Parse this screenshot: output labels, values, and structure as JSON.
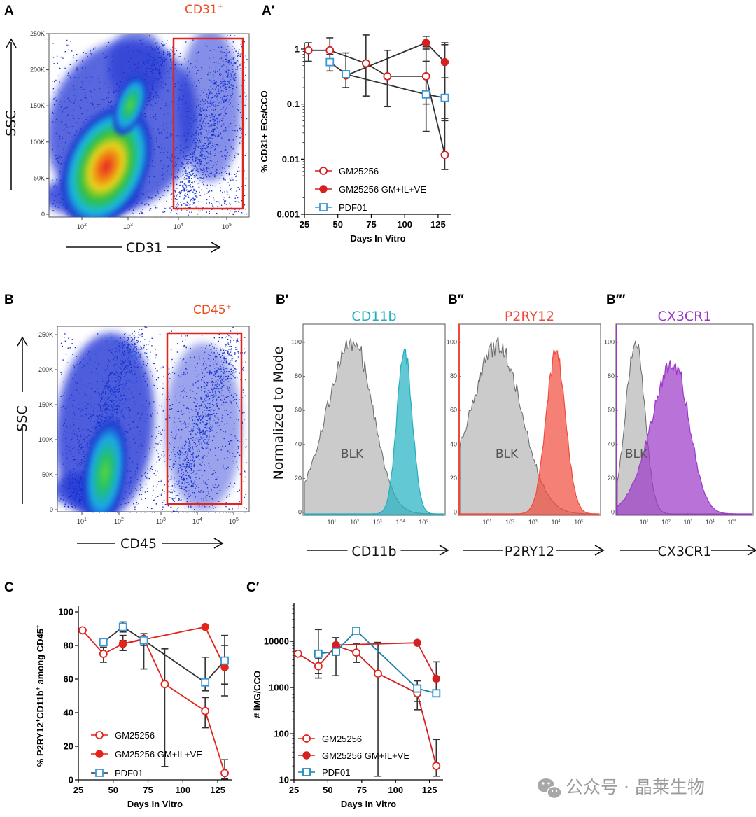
{
  "panels": {
    "A": {
      "label": "A",
      "gate_label": "CD31",
      "gate_sup": "+",
      "xlabel": "CD31",
      "ylabel": "SSC",
      "yticks": [
        "0",
        "50K",
        "100K",
        "150K",
        "200K",
        "250K"
      ],
      "xticks": [
        {
          "b": "10",
          "e": "2"
        },
        {
          "b": "10",
          "e": "3"
        },
        {
          "b": "10",
          "e": "4"
        },
        {
          "b": "10",
          "e": "5"
        }
      ]
    },
    "B": {
      "label": "B",
      "gate_label": "CD45",
      "gate_sup": "+",
      "xlabel": "CD45",
      "ylabel": "SSC",
      "yticks": [
        "0",
        "50K",
        "100K",
        "150K",
        "200K",
        "250K"
      ],
      "xticks": [
        {
          "b": "10",
          "e": "1"
        },
        {
          "b": "10",
          "e": "2"
        },
        {
          "b": "10",
          "e": "3"
        },
        {
          "b": "10",
          "e": "4"
        },
        {
          "b": "10",
          "e": "5"
        }
      ]
    },
    "B1": {
      "label": "B′",
      "title": "CD11b",
      "xlabel": "CD11b",
      "ylabel": "Normalized to Mode",
      "blank_label": "BLK",
      "yticks": [
        "0",
        "20",
        "40",
        "60",
        "80",
        "100"
      ]
    },
    "B2": {
      "label": "B′′",
      "title": "P2RY12",
      "xlabel": "P2RY12",
      "blank_label": "BLK",
      "yticks": [
        "0",
        "20",
        "40",
        "60",
        "80",
        "100"
      ]
    },
    "B3": {
      "label": "B′′′",
      "title": "CX3CR1",
      "xlabel": "CX3CR1",
      "blank_label": "BLK",
      "yticks": [
        "0",
        "20",
        "40",
        "60",
        "80",
        "100"
      ]
    }
  },
  "colors": {
    "red": "#e3241b",
    "blue": "#3c97d8",
    "teal": "#1fb0c0",
    "p2ry12": "#f04a3c",
    "cx3cr1": "#9b38c8",
    "gray": "#333333"
  },
  "chart_data": [
    {
      "id": "A1",
      "label": "A′",
      "type": "line",
      "yscale": "log",
      "xlabel": "Days In Vitro",
      "ylabel": "% CD31+ ECs/CCO",
      "xlim": [
        25,
        135
      ],
      "ylim": [
        0.001,
        1
      ],
      "xticks": [
        25,
        50,
        75,
        100,
        125
      ],
      "ytick_labels": [
        "0.001",
        "0.01",
        "0.1",
        "1"
      ],
      "series": [
        {
          "name": "GM25256",
          "marker": "open-circle",
          "color": "#d42020",
          "points": [
            {
              "x": 28,
              "y": 0.95,
              "lo": 0.6,
              "hi": 1.3
            },
            {
              "x": 44,
              "y": 0.95,
              "lo": 0.55,
              "hi": 1.6
            },
            {
              "x": 71,
              "y": 0.55,
              "lo": 0.14,
              "hi": 1.8
            },
            {
              "x": 87,
              "y": 0.32,
              "lo": 0.09,
              "hi": 0.95
            },
            {
              "x": 116,
              "y": 0.32,
              "lo": 0.1,
              "hi": 1.1
            },
            {
              "x": 130,
              "y": 0.012,
              "lo": 0.0065,
              "hi": 1.2
            }
          ]
        },
        {
          "name": "GM25256 GM+IL+VE",
          "marker": "filled-circle",
          "color": "#d42020",
          "points": [
            {
              "x": 56,
              "y": 0.33,
              "lo": 0.3,
              "hi": 0.37
            },
            {
              "x": 116,
              "y": 1.3,
              "lo": 1.0,
              "hi": 1.7
            },
            {
              "x": 130,
              "y": 0.58,
              "lo": 0.05,
              "hi": 1.3
            }
          ]
        },
        {
          "name": "PDF01",
          "marker": "open-square",
          "color": "#3c97d8",
          "points": [
            {
              "x": 44,
              "y": 0.58,
              "lo": 0.4,
              "hi": 0.8
            },
            {
              "x": 56,
              "y": 0.35,
              "lo": 0.2,
              "hi": 0.85
            },
            {
              "x": 116,
              "y": 0.15,
              "lo": 0.032,
              "hi": 0.6
            },
            {
              "x": 130,
              "y": 0.13,
              "lo": 0.055,
              "hi": 0.3
            }
          ]
        }
      ]
    },
    {
      "id": "C",
      "label": "C",
      "type": "line",
      "xlabel": "Days In Vitro",
      "ylabel": "% P2RY12",
      "ylabel_sup1": "+",
      "ylabel_mid": "CD11b",
      "ylabel_sup2": "+",
      "ylabel_tail": " among CD45",
      "ylabel_sup3": "+",
      "xlim": [
        25,
        135
      ],
      "ylim": [
        0,
        100
      ],
      "xticks": [
        25,
        50,
        75,
        100,
        125
      ],
      "yticks": [
        0,
        20,
        40,
        60,
        80,
        100
      ],
      "series": [
        {
          "name": "GM25256",
          "marker": "open-circle",
          "color": "#e3241b",
          "points": [
            {
              "x": 28,
              "y": 89
            },
            {
              "x": 43,
              "y": 75,
              "lo": 70,
              "hi": 79
            },
            {
              "x": 57,
              "y": 81,
              "lo": 77,
              "hi": 86
            },
            {
              "x": 72,
              "y": 84,
              "lo": 80,
              "hi": 87
            },
            {
              "x": 87,
              "y": 57,
              "lo": 8,
              "hi": 78
            },
            {
              "x": 116,
              "y": 41,
              "lo": 31,
              "hi": 49
            },
            {
              "x": 130,
              "y": 4,
              "lo": 0.5,
              "hi": 12
            }
          ]
        },
        {
          "name": "GM25256 GM+IL+VE",
          "marker": "filled-circle",
          "color": "#e3241b",
          "points": [
            {
              "x": 57,
              "y": 81,
              "lo": 77,
              "hi": 83
            },
            {
              "x": 116,
              "y": 91
            },
            {
              "x": 130,
              "y": 67,
              "lo": 50,
              "hi": 80
            }
          ]
        },
        {
          "name": "PDF01",
          "marker": "open-square",
          "color": "#3c97d8",
          "points": [
            {
              "x": 43,
              "y": 82
            },
            {
              "x": 57,
              "y": 91,
              "lo": 88,
              "hi": 94
            },
            {
              "x": 72,
              "y": 83,
              "lo": 66,
              "hi": 87
            },
            {
              "x": 116,
              "y": 58,
              "lo": 53,
              "hi": 73
            },
            {
              "x": 130,
              "y": 71,
              "lo": 57,
              "hi": 86
            }
          ]
        }
      ]
    },
    {
      "id": "C1",
      "label": "C′",
      "type": "line",
      "yscale": "log",
      "xlabel": "Days In Vitro",
      "ylabel": "# iMG/CCO",
      "xlim": [
        25,
        135
      ],
      "ylim": [
        10,
        50000
      ],
      "xticks": [
        25,
        50,
        75,
        100,
        125
      ],
      "ytick_labels": [
        "10",
        "100",
        "1000",
        "10000"
      ],
      "series": [
        {
          "name": "GM25256",
          "marker": "open-circle",
          "color": "#e3241b",
          "points": [
            {
              "x": 28,
              "y": 5400
            },
            {
              "x": 43,
              "y": 2900,
              "lo": 2000,
              "hi": 4200
            },
            {
              "x": 56,
              "y": 8000,
              "lo": 5000,
              "hi": 12000
            },
            {
              "x": 71,
              "y": 5700,
              "lo": 3500,
              "hi": 9000
            },
            {
              "x": 87,
              "y": 2000,
              "lo": 12,
              "hi": 9500
            },
            {
              "x": 116,
              "y": 750,
              "lo": 330,
              "hi": 1400
            },
            {
              "x": 130,
              "y": 20,
              "lo": 12,
              "hi": 75
            }
          ]
        },
        {
          "name": "GM25256 GM+IL+VE",
          "marker": "filled-circle",
          "color": "#d42020",
          "points": [
            {
              "x": 56,
              "y": 8300
            },
            {
              "x": 116,
              "y": 9300
            },
            {
              "x": 130,
              "y": 1550,
              "lo": 750,
              "hi": 3600
            }
          ]
        },
        {
          "name": "PDF01",
          "marker": "open-square",
          "color": "#1f8bbf",
          "points": [
            {
              "x": 43,
              "y": 5400,
              "lo": 1600,
              "hi": 18000
            },
            {
              "x": 56,
              "y": 6000,
              "lo": 1800,
              "hi": 9000
            },
            {
              "x": 71,
              "y": 17000
            },
            {
              "x": 116,
              "y": 950,
              "lo": 500,
              "hi": 1400
            },
            {
              "x": 130,
              "y": 750
            }
          ]
        }
      ]
    }
  ],
  "watermark": {
    "text": "公众号 · 晶莱生物"
  }
}
